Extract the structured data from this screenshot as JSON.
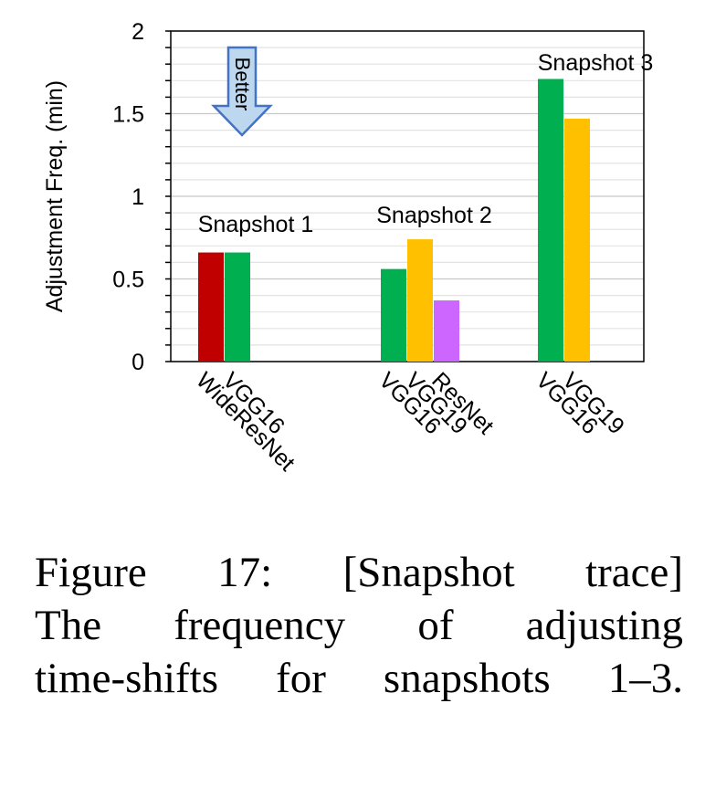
{
  "chart_data": {
    "type": "bar",
    "ylabel": "Adjustment Freq. (min)",
    "ylim": [
      0,
      2
    ],
    "yticks": [
      "0",
      "0.5",
      "1",
      "1.5",
      "2"
    ],
    "grid": true,
    "groups": [
      {
        "label": "Snapshot 1",
        "bars": [
          {
            "category": "WideResNet",
            "value": 0.66,
            "color": "#c00000"
          },
          {
            "category": "VGG16",
            "value": 0.66,
            "color": "#00b050"
          }
        ]
      },
      {
        "label": "Snapshot 2",
        "bars": [
          {
            "category": "VGG16",
            "value": 0.56,
            "color": "#00b050"
          },
          {
            "category": "VGG19",
            "value": 0.74,
            "color": "#ffc000"
          },
          {
            "category": "ResNet",
            "value": 0.37,
            "color": "#cc66ff"
          }
        ]
      },
      {
        "label": "Snapshot 3",
        "bars": [
          {
            "category": "VGG16",
            "value": 1.71,
            "color": "#00b050"
          },
          {
            "category": "VGG19",
            "value": 1.47,
            "color": "#ffc000"
          }
        ]
      }
    ],
    "annotation": {
      "text": "Better",
      "icon": "down-arrow-icon",
      "color": "#bdd7ee"
    }
  },
  "caption": {
    "line1": "Figure 17: [Snapshot trace]",
    "line2": "The frequency of adjusting",
    "line3": "time-shifts for snapshots 1–3."
  }
}
